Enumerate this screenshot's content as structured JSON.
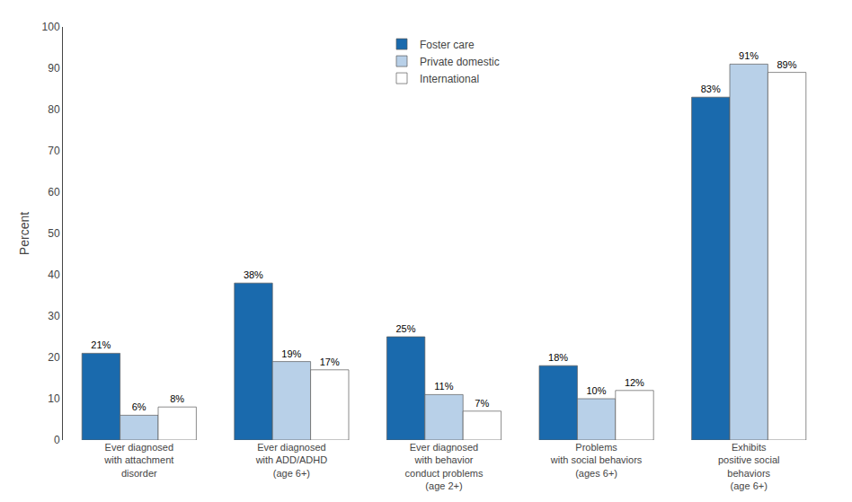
{
  "chart_data": {
    "type": "bar",
    "categories": [
      "Ever diagnosed\nwith attachment\ndisorder",
      "Ever diagnosed\nwith ADD/ADHD\n(age 6+)",
      "Ever diagnosed\nwith behavior\nconduct problems\n(age 2+)",
      "Problems\nwith social behaviors\n(ages 6+)",
      "Exhibits\npositive social\nbehaviors\n(age 6+)"
    ],
    "series": [
      {
        "name": "Foster care",
        "color": "#1A6AAD",
        "values": [
          21,
          38,
          25,
          18,
          83
        ],
        "value_labels": [
          "21%",
          "38%",
          "25%",
          "18%",
          "83%"
        ]
      },
      {
        "name": "Private domestic",
        "color": "#B8D0E8",
        "values": [
          6,
          19,
          11,
          10,
          91
        ],
        "value_labels": [
          "6%",
          "19%",
          "11%",
          "10%",
          "91%"
        ]
      },
      {
        "name": "International",
        "color": "#FFFFFF",
        "values": [
          8,
          17,
          7,
          12,
          89
        ],
        "value_labels": [
          "8%",
          "17%",
          "7%",
          "12%",
          "89%"
        ]
      }
    ],
    "ylabel": "Percent",
    "ylim": [
      0,
      100
    ],
    "yticks": [
      0,
      10,
      20,
      30,
      40,
      50,
      60,
      70,
      80,
      90,
      100
    ],
    "grid": false,
    "legend": "upper center",
    "data_labels": true
  }
}
